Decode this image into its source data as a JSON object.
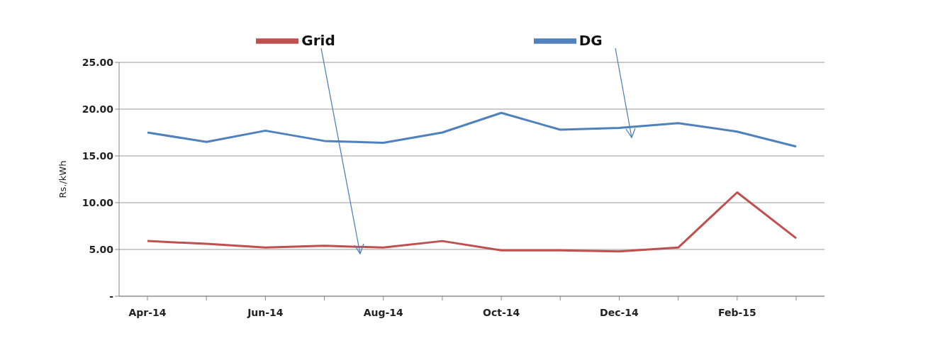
{
  "chart_data": {
    "type": "line",
    "ylabel": "Rs./kWh",
    "categories": [
      "Apr-14",
      null,
      "Jun-14",
      null,
      "Aug-14",
      null,
      "Oct-14",
      null,
      "Dec-14",
      null,
      "Feb-15",
      null
    ],
    "series": [
      {
        "name": "Grid",
        "color": "#c0504d",
        "values": [
          5.9,
          5.6,
          5.2,
          5.4,
          5.2,
          5.9,
          4.9,
          4.9,
          4.8,
          5.2,
          11.1,
          6.2
        ]
      },
      {
        "name": "DG",
        "color": "#4f81bd",
        "values": [
          17.5,
          16.5,
          17.7,
          16.6,
          16.4,
          17.5,
          19.6,
          17.8,
          18.0,
          18.5,
          17.6,
          16.0
        ]
      }
    ],
    "ylim": [
      0,
      25
    ],
    "yticks": [
      {
        "value": 0,
        "label": "-"
      },
      {
        "value": 5,
        "label": "5.00"
      },
      {
        "value": 10,
        "label": "10.00"
      },
      {
        "value": 15,
        "label": "15.00"
      },
      {
        "value": 20,
        "label": "20.00"
      },
      {
        "value": 25,
        "label": "25.00"
      }
    ],
    "grid": "y",
    "legend": "top",
    "marker": "none"
  }
}
